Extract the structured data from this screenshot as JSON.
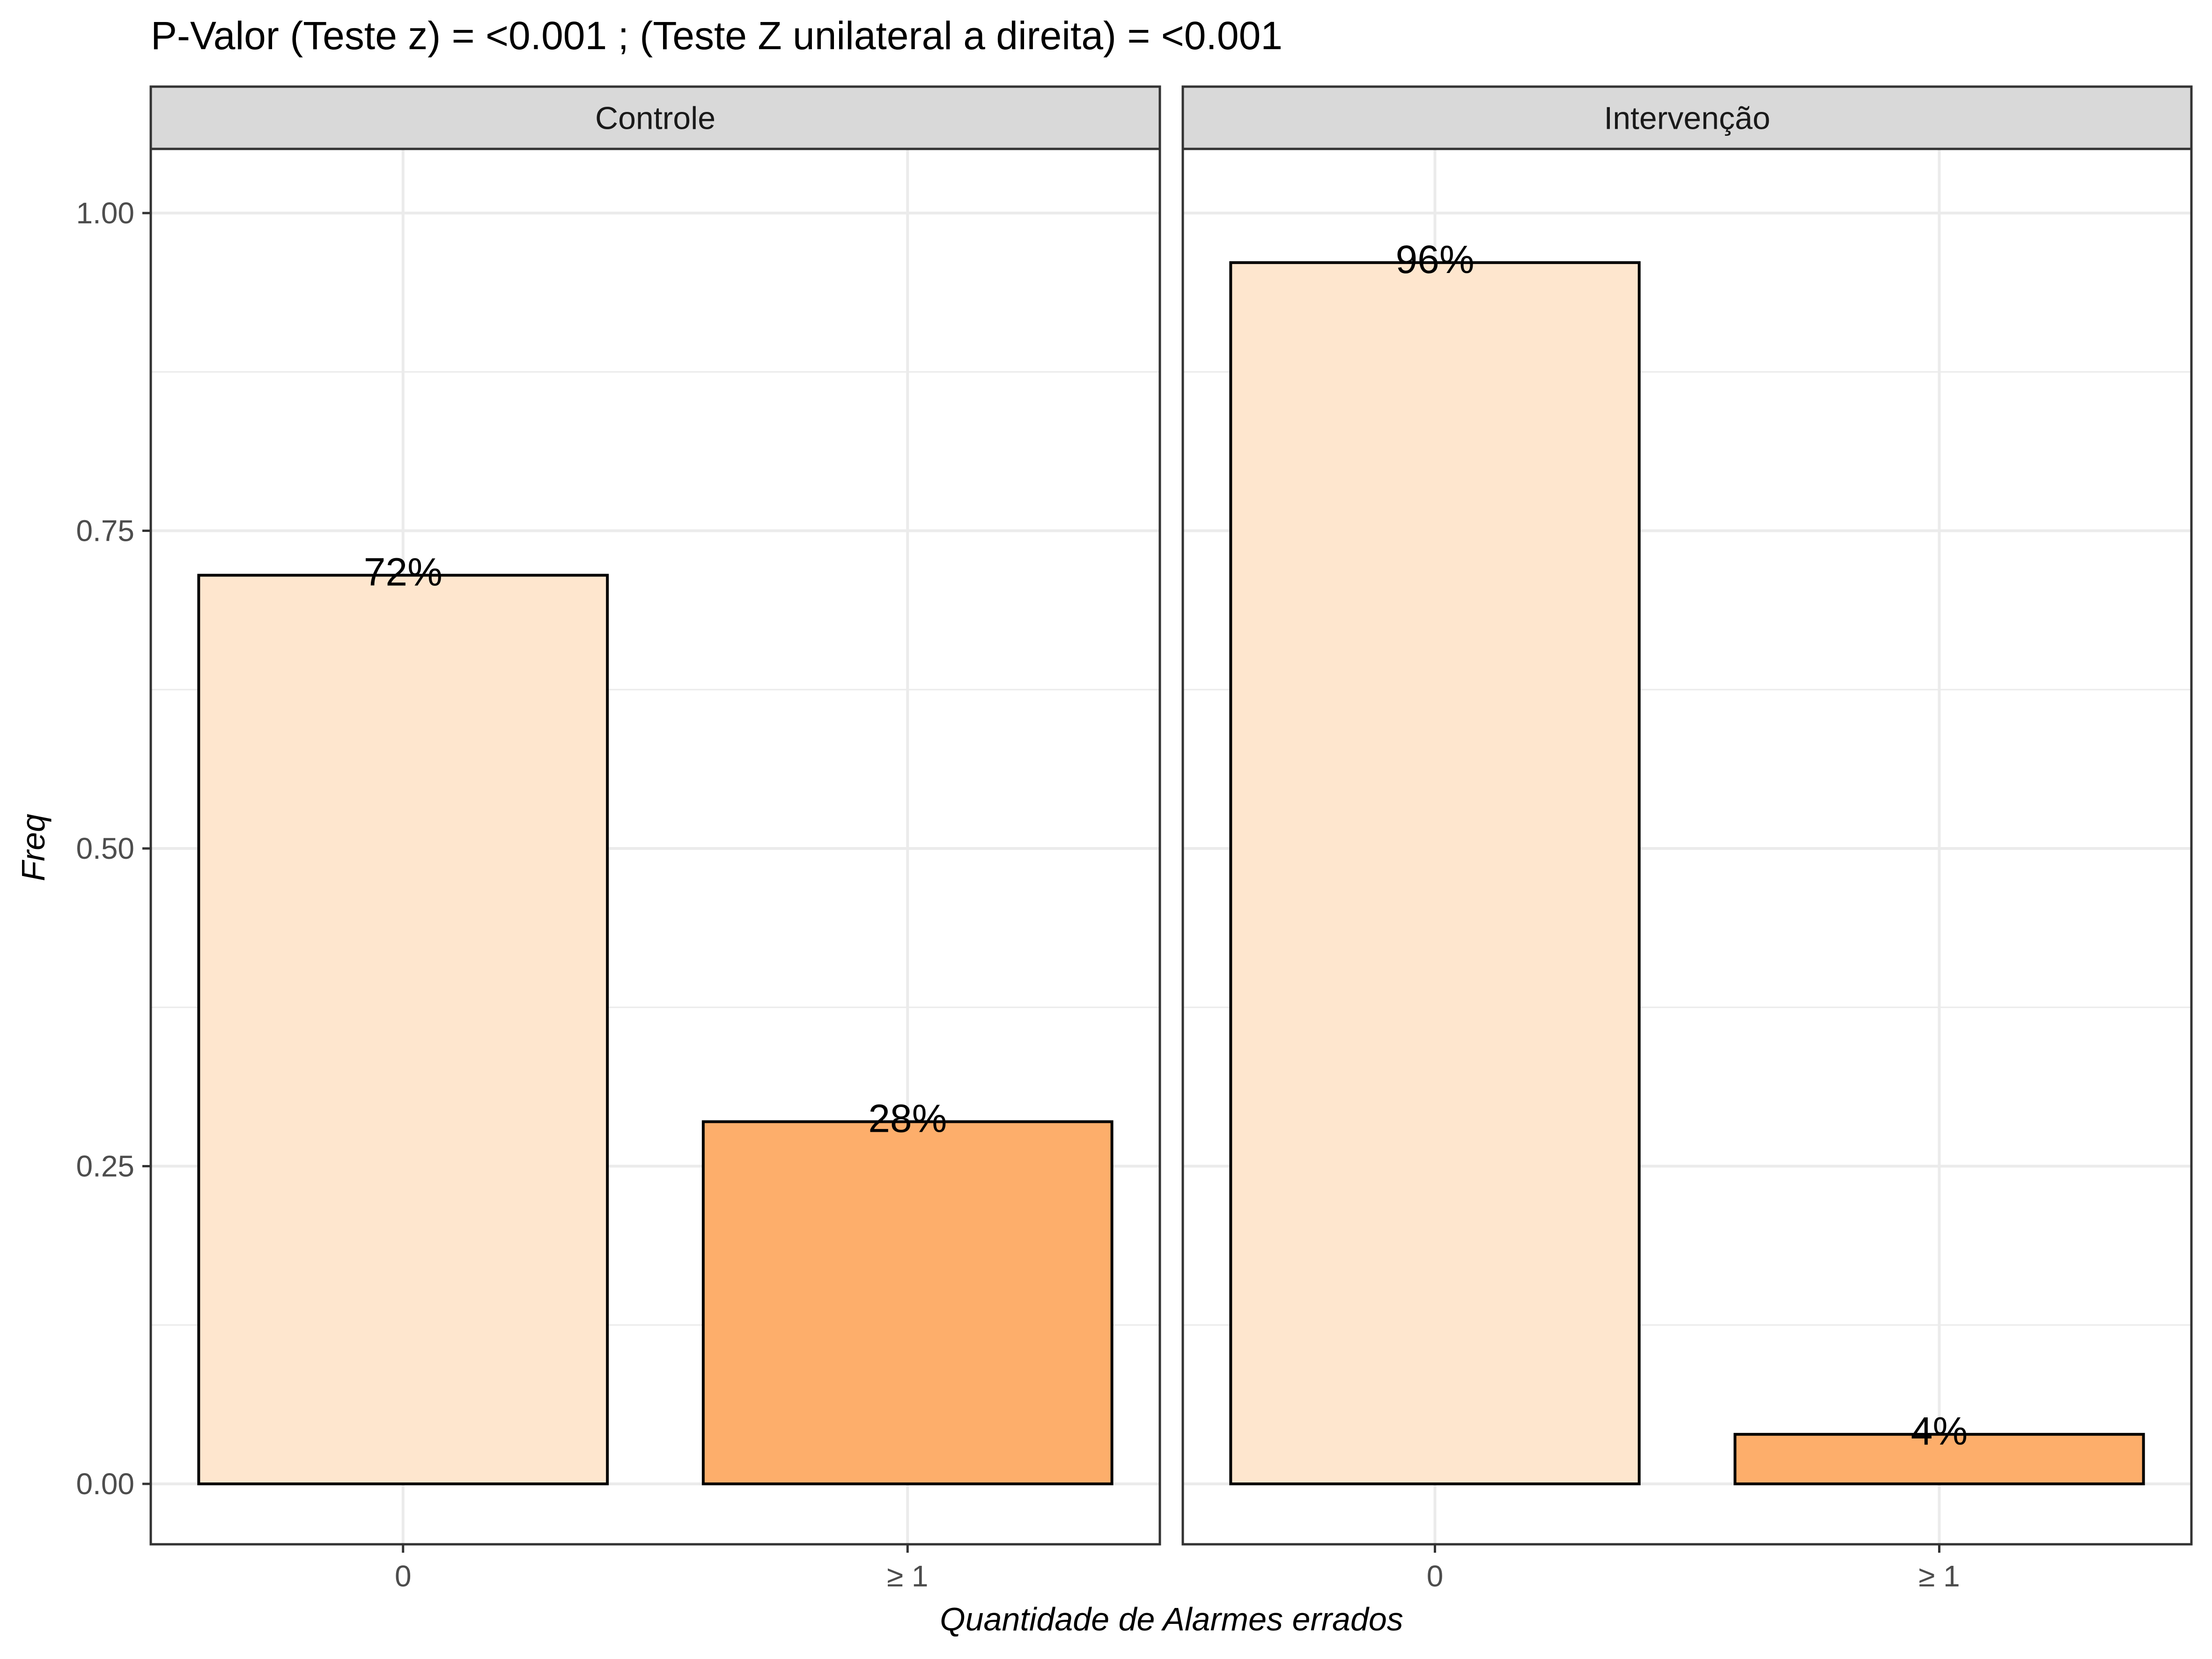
{
  "chart_data": {
    "type": "bar",
    "title": "P-Valor (Teste z) = <0.001 ; (Teste Z unilateral a direita) = <0.001",
    "xlabel": "Quantidade de Alarmes errados",
    "ylabel": "Freq",
    "ylim": [
      0,
      1.05
    ],
    "y_ticks": [
      "0.00",
      "0.25",
      "0.50",
      "0.75",
      "1.00"
    ],
    "grid": true,
    "categories": [
      "0",
      "≥ 1"
    ],
    "colors": {
      "0": "#FEE6CE",
      "≥ 1": "#FDAE6B"
    },
    "panels": [
      {
        "name": "Controle",
        "values": [
          0.715,
          0.285
        ],
        "labels": [
          "72%",
          "28%"
        ]
      },
      {
        "name": "Intervenção",
        "values": [
          0.961,
          0.039
        ],
        "labels": [
          "96%",
          "4%"
        ]
      }
    ]
  }
}
